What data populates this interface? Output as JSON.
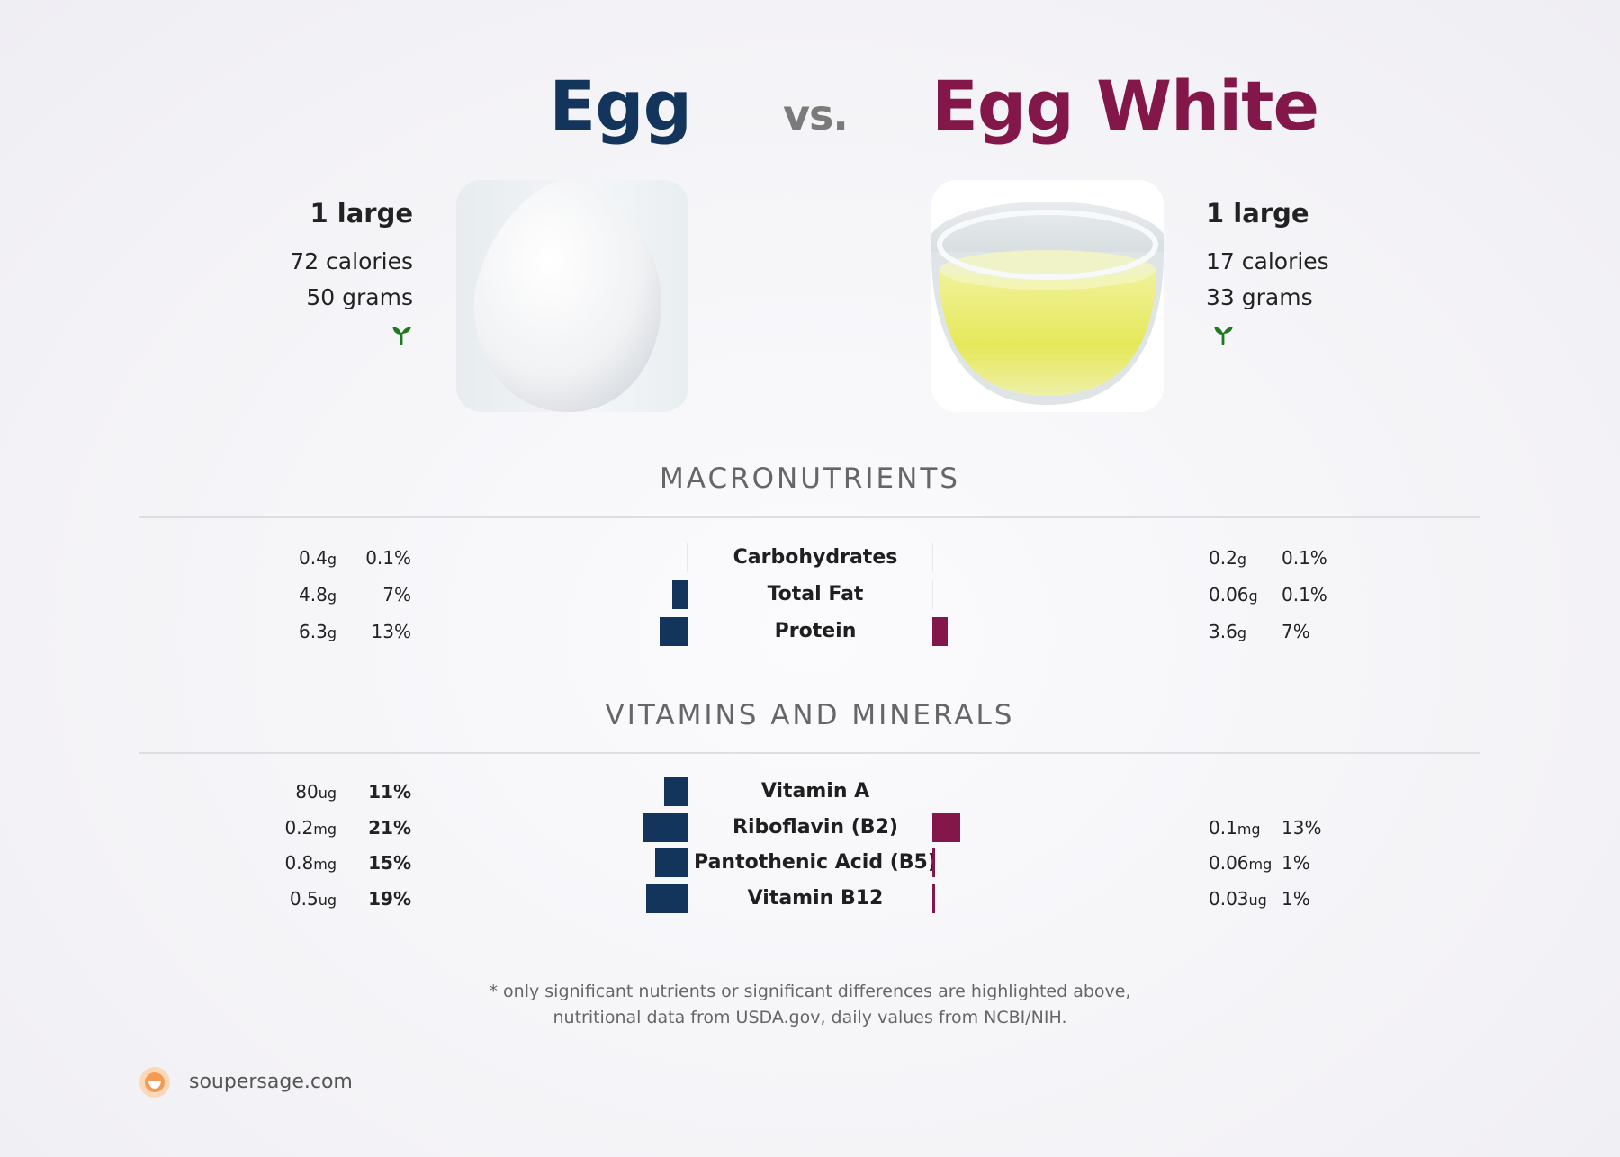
{
  "header": {
    "left_title": "Egg",
    "vs": "vs.",
    "right_title": "Egg White",
    "left_color": "#14355b",
    "right_color": "#84174a"
  },
  "left_food": {
    "serving": "1 large",
    "calories": "72 calories",
    "grams": "50 grams",
    "icon": "sprout-icon"
  },
  "right_food": {
    "serving": "1 large",
    "calories": "17 calories",
    "grams": "33 grams",
    "icon": "sprout-icon"
  },
  "macros": {
    "title": "MACRONUTRIENTS",
    "rows": [
      {
        "label": "Carbohydrates",
        "left_amount": "0.4",
        "left_unit": "g",
        "left_pct": "0.1%",
        "left_value": 0.1,
        "right_amount": "0.2",
        "right_unit": "g",
        "right_pct": "0.1%",
        "right_value": 0.1
      },
      {
        "label": "Total Fat",
        "left_amount": "4.8",
        "left_unit": "g",
        "left_pct": "7%",
        "left_value": 7,
        "right_amount": "0.06",
        "right_unit": "g",
        "right_pct": "0.1%",
        "right_value": 0.1
      },
      {
        "label": "Protein",
        "left_amount": "6.3",
        "left_unit": "g",
        "left_pct": "13%",
        "left_value": 13,
        "right_amount": "3.6",
        "right_unit": "g",
        "right_pct": "7%",
        "right_value": 7
      }
    ]
  },
  "vitamins": {
    "title": "VITAMINS AND MINERALS",
    "rows": [
      {
        "label": "Vitamin A",
        "left_amount": "80",
        "left_unit": "ug",
        "left_pct": "11%",
        "left_value": 11,
        "right_amount": "",
        "right_unit": "",
        "right_pct": "",
        "right_value": 0
      },
      {
        "label": "Riboflavin (B2)",
        "left_amount": "0.2",
        "left_unit": "mg",
        "left_pct": "21%",
        "left_value": 21,
        "right_amount": "0.1",
        "right_unit": "mg",
        "right_pct": "13%",
        "right_value": 13
      },
      {
        "label": "Pantothenic Acid (B5)",
        "left_amount": "0.8",
        "left_unit": "mg",
        "left_pct": "15%",
        "left_value": 15,
        "right_amount": "0.06",
        "right_unit": "mg",
        "right_pct": "1%",
        "right_value": 1
      },
      {
        "label": "Vitamin B12",
        "left_amount": "0.5",
        "left_unit": "ug",
        "left_pct": "19%",
        "left_value": 19,
        "right_amount": "0.03",
        "right_unit": "ug",
        "right_pct": "1%",
        "right_value": 1
      }
    ]
  },
  "footnote": {
    "line1": "* only significant nutrients or significant differences are highlighted above,",
    "line2": "nutritional data from USDA.gov, daily values from NCBI/NIH."
  },
  "brand": {
    "name": "soupersage.com",
    "icon": "soupersage-logo-icon"
  }
}
